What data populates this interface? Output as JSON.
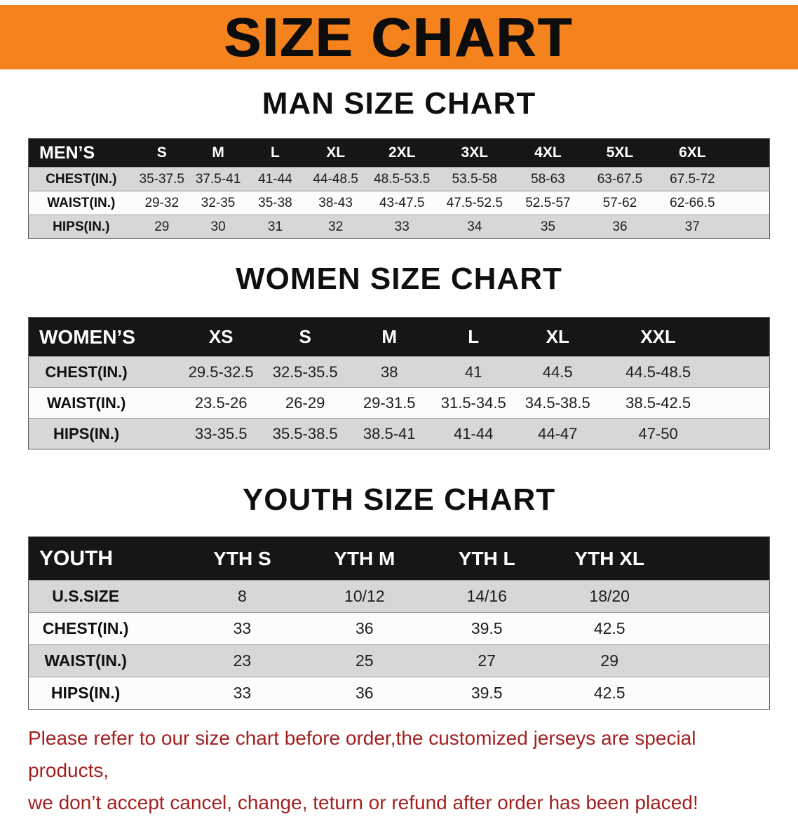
{
  "banner": {
    "title": "SIZE CHART"
  },
  "colors": {
    "banner_bg": "#f5831d",
    "table_header_bg": "#161616",
    "row_alt_bg": "#d7d7d7",
    "row_bg": "#fcfcfc",
    "note_text": "#a32020"
  },
  "sections": [
    {
      "heading": "MAN SIZE CHART",
      "header": [
        "MEN’S",
        "S",
        "M",
        "L",
        "XL",
        "2XL",
        "3XL",
        "4XL",
        "5XL",
        "6XL"
      ],
      "rows": [
        [
          "CHEST(IN.)",
          "35-37.5",
          "37.5-41",
          "41-44",
          "44-48.5",
          "48.5-53.5",
          "53.5-58",
          "58-63",
          "63-67.5",
          "67.5-72"
        ],
        [
          "WAIST(IN.)",
          "29-32",
          "32-35",
          "35-38",
          "38-43",
          "43-47.5",
          "47.5-52.5",
          "52.5-57",
          "57-62",
          "62-66.5"
        ],
        [
          "HIPS(IN.)",
          "29",
          "30",
          "31",
          "32",
          "33",
          "34",
          "35",
          "36",
          "37"
        ]
      ]
    },
    {
      "heading": "WOMEN SIZE CHART",
      "header": [
        "WOMEN’S",
        "XS",
        "S",
        "M",
        "L",
        "XL",
        "XXL"
      ],
      "rows": [
        [
          "CHEST(IN.)",
          "29.5-32.5",
          "32.5-35.5",
          "38",
          "41",
          "44.5",
          "44.5-48.5"
        ],
        [
          "WAIST(IN.)",
          "23.5-26",
          "26-29",
          "29-31.5",
          "31.5-34.5",
          "34.5-38.5",
          "38.5-42.5"
        ],
        [
          "HIPS(IN.)",
          "33-35.5",
          "35.5-38.5",
          "38.5-41",
          "41-44",
          "44-47",
          "47-50"
        ]
      ]
    },
    {
      "heading": "YOUTH SIZE CHART",
      "header": [
        "YOUTH",
        "YTH S",
        "YTH M",
        "YTH L",
        "YTH XL"
      ],
      "rows": [
        [
          "U.S.SIZE",
          "8",
          "10/12",
          "14/16",
          "18/20"
        ],
        [
          "CHEST(IN.)",
          "33",
          "36",
          "39.5",
          "42.5"
        ],
        [
          "WAIST(IN.)",
          "23",
          "25",
          "27",
          "29"
        ],
        [
          "HIPS(IN.)",
          "33",
          "36",
          "39.5",
          "42.5"
        ]
      ]
    }
  ],
  "note": {
    "lines": [
      "Please refer to our size chart before order,the customized jerseys are special products,",
      "we don’t accept cancel, change, teturn or refund after order has been placed!"
    ]
  }
}
